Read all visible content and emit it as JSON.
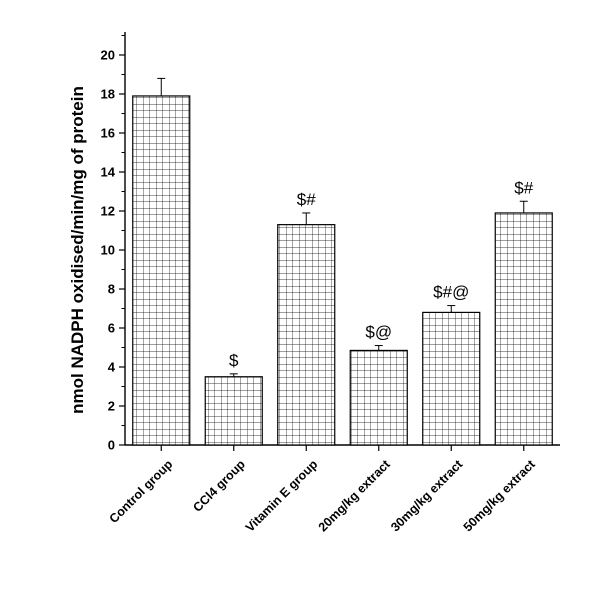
{
  "chart_data": {
    "type": "bar",
    "title": "",
    "xlabel": "",
    "ylabel": "nmol NADPH oxidised/min/mg of protein",
    "ylim": [
      0,
      21
    ],
    "yticks": [
      0,
      2,
      4,
      6,
      8,
      10,
      12,
      14,
      16,
      18,
      20
    ],
    "categories": [
      "Control group",
      "CCl4 group",
      "Vitamin E group",
      "20mg/kg extract",
      "30mg/kg extract",
      "50mg/kg extract"
    ],
    "values": [
      17.9,
      3.5,
      11.3,
      4.85,
      6.8,
      11.9
    ],
    "errors": [
      0.9,
      0.15,
      0.6,
      0.25,
      0.35,
      0.6
    ],
    "annotations": [
      "",
      "$",
      "$#",
      "$@",
      "$#@",
      "$#"
    ],
    "bar_pattern": "grid",
    "grid": false,
    "legend": "none",
    "colors": {
      "bar_fill": "#ffffff",
      "bar_stroke": "#000000",
      "hatch": "#000000"
    }
  }
}
